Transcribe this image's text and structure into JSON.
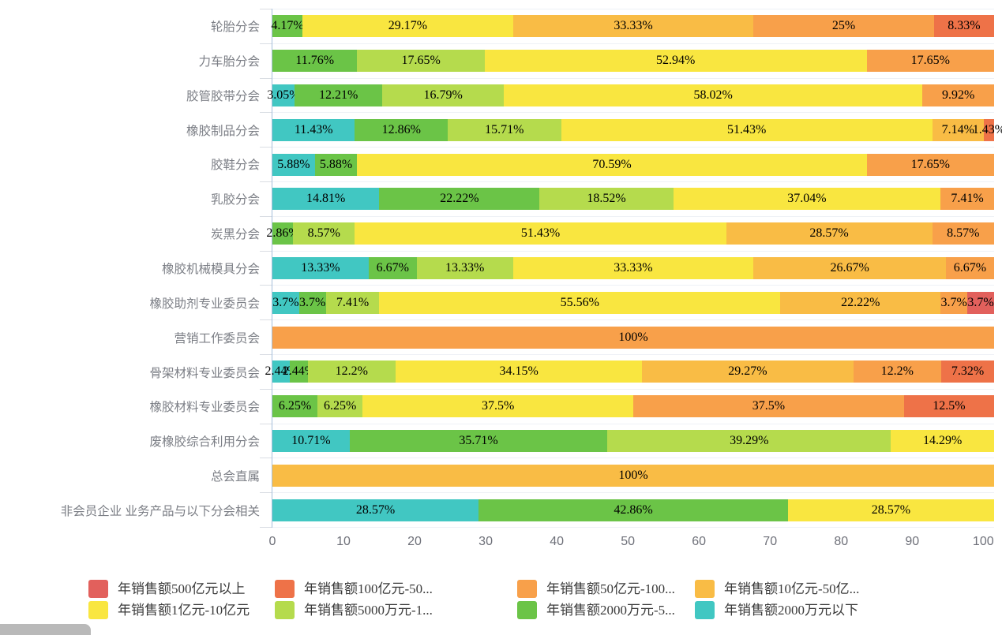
{
  "chart_data": {
    "type": "bar",
    "orientation": "horizontal",
    "stack": "percent",
    "value_suffix": "%",
    "title": "",
    "xlabel": "",
    "ylabel": "",
    "xlim": [
      0,
      100
    ],
    "x_ticks": [
      "0",
      "10",
      "20",
      "30",
      "40",
      "50",
      "60",
      "70",
      "80",
      "90",
      "100"
    ],
    "grid": false,
    "legend_position": "bottom",
    "categories": [
      "轮胎分会",
      "力车胎分会",
      "胶管胶带分会",
      "橡胶制品分会",
      "胶鞋分会",
      "乳胶分会",
      "炭黑分会",
      "橡胶机械模具分会",
      "橡胶助剂专业委员会",
      "营销工作委员会",
      "骨架材料专业委员会",
      "橡胶材料专业委员会",
      "废橡胶综合利用分会",
      "总会直属",
      "非会员企业 业务产品与以下分会相关"
    ],
    "series": [
      {
        "name": "年销售额2000万元以下",
        "color": "#41c7c2",
        "values": [
          0,
          0,
          3.05,
          11.43,
          5.88,
          14.81,
          0,
          13.33,
          3.7,
          0,
          2.44,
          0,
          10.71,
          0,
          28.57
        ]
      },
      {
        "name": "年销售额2000万元-5...",
        "color": "#6bc447",
        "values": [
          4.17,
          11.76,
          12.21,
          12.86,
          5.88,
          22.22,
          2.86,
          6.67,
          3.7,
          0,
          2.44,
          6.25,
          35.71,
          0,
          42.86
        ]
      },
      {
        "name": "年销售额5000万元-1...",
        "color": "#b5db4d",
        "values": [
          0,
          17.65,
          16.79,
          15.71,
          0,
          18.52,
          8.57,
          13.33,
          7.41,
          0,
          12.2,
          6.25,
          39.29,
          0,
          0
        ]
      },
      {
        "name": "年销售额1亿元-10亿元",
        "color": "#f9e640",
        "values": [
          29.17,
          52.94,
          58.02,
          51.43,
          70.59,
          37.04,
          51.43,
          33.33,
          55.56,
          0,
          34.15,
          37.5,
          14.29,
          0,
          28.57
        ]
      },
      {
        "name": "年销售额10亿元-50亿...",
        "color": "#f9bc45",
        "values": [
          33.33,
          0,
          0,
          7.14,
          0,
          0,
          28.57,
          26.67,
          22.22,
          0,
          29.27,
          0,
          0,
          100,
          0
        ]
      },
      {
        "name": "年销售额50亿元-100...",
        "color": "#f8a04a",
        "values": [
          25,
          17.65,
          9.92,
          0,
          17.65,
          7.41,
          8.57,
          6.67,
          3.7,
          100,
          12.2,
          37.5,
          0,
          0,
          0
        ]
      },
      {
        "name": "年销售额100亿元-50...",
        "color": "#ee7248",
        "values": [
          8.33,
          0,
          0,
          1.43,
          0,
          0,
          0,
          0,
          0,
          0,
          7.32,
          12.5,
          0,
          0,
          0
        ]
      },
      {
        "name": "年销售额500亿元以上",
        "color": "#e2605c",
        "values": [
          0,
          0,
          0,
          0,
          0,
          0,
          0,
          0,
          3.7,
          0,
          0,
          0,
          0,
          0,
          0
        ]
      }
    ],
    "legend_display_order": [
      7,
      6,
      5,
      4,
      3,
      2,
      1,
      0
    ]
  }
}
